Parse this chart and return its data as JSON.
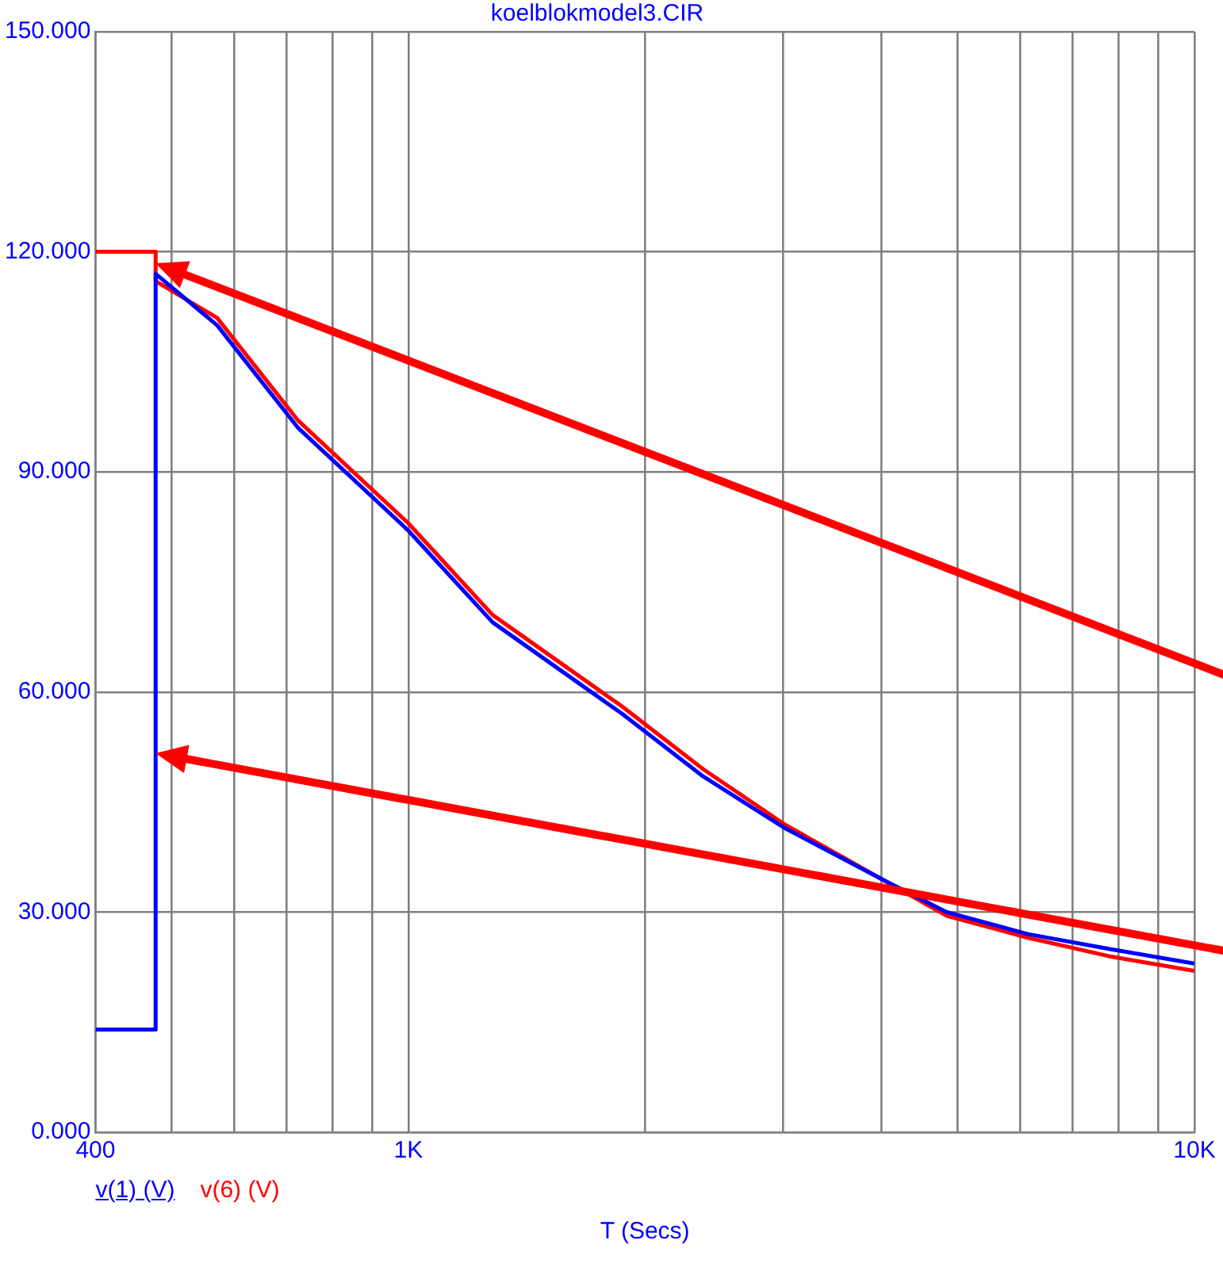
{
  "chart_data": {
    "type": "line",
    "title": "koelblokmodel3.CIR",
    "xlabel": "T (Secs)",
    "log": "x",
    "grid": true,
    "legend": "bottom left",
    "marker": "none",
    "line_style": "solid",
    "xlim": [
      400,
      10000
    ],
    "xticks": [
      {
        "value": 400,
        "label": "400"
      },
      {
        "value": 500,
        "label": null
      },
      {
        "value": 600,
        "label": null
      },
      {
        "value": 700,
        "label": null
      },
      {
        "value": 800,
        "label": null
      },
      {
        "value": 900,
        "label": null
      },
      {
        "value": 1000,
        "label": "1K"
      },
      {
        "value": 2000,
        "label": null
      },
      {
        "value": 3000,
        "label": null
      },
      {
        "value": 4000,
        "label": null
      },
      {
        "value": 5000,
        "label": null
      },
      {
        "value": 6000,
        "label": null
      },
      {
        "value": 7000,
        "label": null
      },
      {
        "value": 8000,
        "label": null
      },
      {
        "value": 9000,
        "label": null
      },
      {
        "value": 10000,
        "label": "10K"
      }
    ],
    "ylim": [
      0,
      150
    ],
    "yticks": [
      {
        "value": 0,
        "label": "0.000"
      },
      {
        "value": 30,
        "label": "30.000"
      },
      {
        "value": 60,
        "label": "60.000"
      },
      {
        "value": 90,
        "label": "90.000"
      },
      {
        "value": 120,
        "label": "120.000"
      },
      {
        "value": 150,
        "label": "150.000"
      }
    ],
    "series": [
      {
        "name": "v(1) (V)",
        "color": "#0000ff",
        "x": [
          400,
          477,
          477,
          571,
          724,
          1000,
          1280,
          1872,
          2371,
          3006,
          4000,
          4840,
          6140,
          7780,
          10000
        ],
        "values": [
          14,
          14,
          117,
          110,
          96,
          82,
          69.5,
          57,
          48.5,
          41.5,
          34.5,
          30,
          27,
          25,
          23
        ]
      },
      {
        "name": "v(6) (V)",
        "color": "#ff0000",
        "x": [
          400,
          477,
          477,
          571,
          724,
          1000,
          1280,
          1872,
          2371,
          3006,
          4000,
          4840,
          6140,
          7780,
          10000
        ],
        "values": [
          120,
          120,
          116,
          111,
          97,
          83,
          70.5,
          58,
          49.5,
          42,
          34.5,
          29.5,
          26.5,
          24,
          22
        ]
      }
    ]
  }
}
